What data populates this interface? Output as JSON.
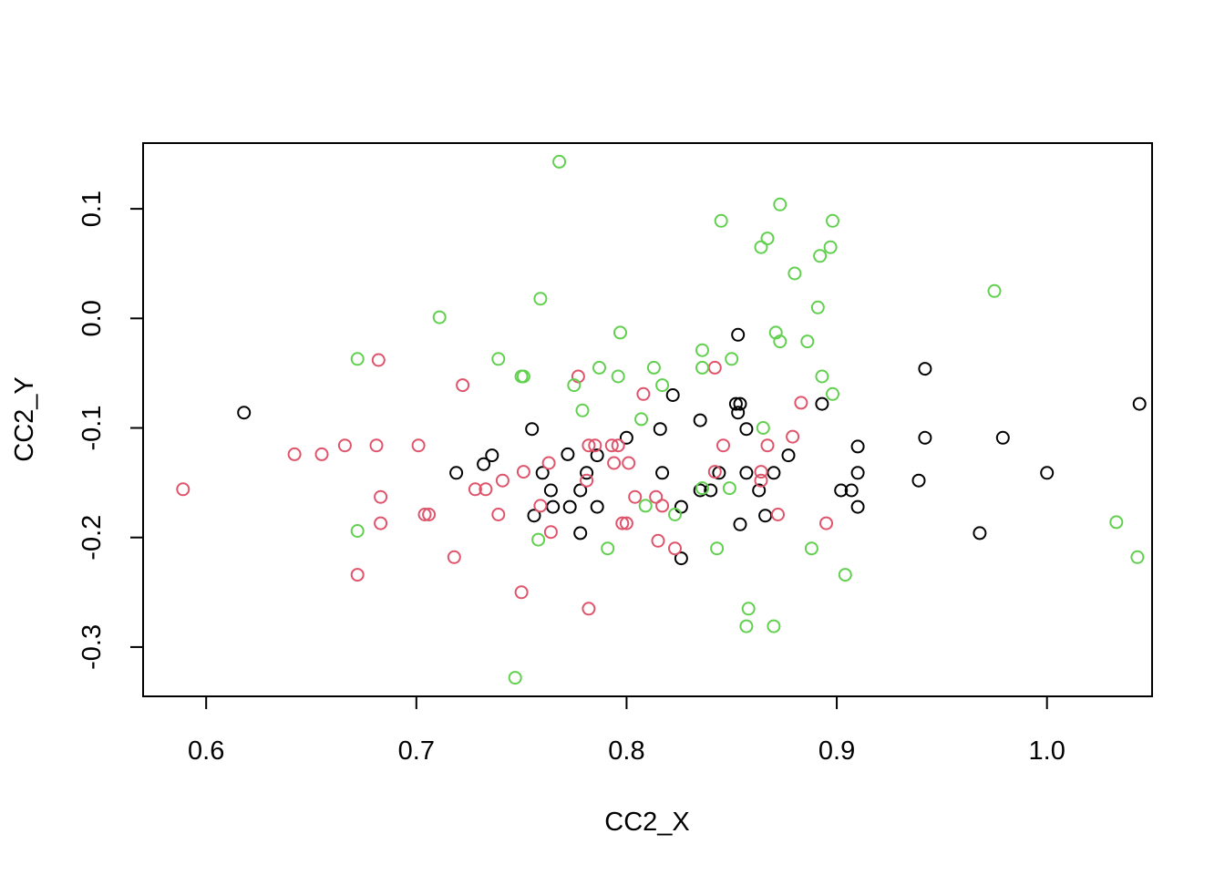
{
  "chart_data": {
    "type": "scatter",
    "title": "",
    "xlabel": "CC2_X",
    "ylabel": "CC2_Y",
    "xlim": [
      0.57,
      1.05
    ],
    "ylim": [
      -0.345,
      0.16
    ],
    "xticks": [
      0.6,
      0.7,
      0.8,
      0.9,
      1.0
    ],
    "xtick_labels": [
      "0.6",
      "0.7",
      "0.8",
      "0.9",
      "1.0"
    ],
    "yticks": [
      -0.3,
      -0.2,
      -0.1,
      0.0,
      0.1
    ],
    "ytick_labels": [
      "-0.3",
      "-0.2",
      "-0.1",
      "0.0",
      "0.1"
    ],
    "grid": false,
    "marker": "open-circle",
    "series": [
      {
        "color": "#000000",
        "points": [
          [
            0.618,
            -0.086
          ],
          [
            0.719,
            -0.141
          ],
          [
            0.732,
            -0.133
          ],
          [
            0.736,
            -0.125
          ],
          [
            0.755,
            -0.101
          ],
          [
            0.756,
            -0.18
          ],
          [
            0.76,
            -0.141
          ],
          [
            0.764,
            -0.157
          ],
          [
            0.765,
            -0.172
          ],
          [
            0.772,
            -0.124
          ],
          [
            0.773,
            -0.172
          ],
          [
            0.778,
            -0.196
          ],
          [
            0.778,
            -0.157
          ],
          [
            0.781,
            -0.141
          ],
          [
            0.786,
            -0.125
          ],
          [
            0.786,
            -0.172
          ],
          [
            0.8,
            -0.109
          ],
          [
            0.816,
            -0.101
          ],
          [
            0.817,
            -0.141
          ],
          [
            0.822,
            -0.07
          ],
          [
            0.826,
            -0.172
          ],
          [
            0.826,
            -0.219
          ],
          [
            0.835,
            -0.093
          ],
          [
            0.835,
            -0.157
          ],
          [
            0.84,
            -0.157
          ],
          [
            0.844,
            -0.141
          ],
          [
            0.852,
            -0.078
          ],
          [
            0.853,
            -0.086
          ],
          [
            0.853,
            -0.015
          ],
          [
            0.854,
            -0.078
          ],
          [
            0.854,
            -0.188
          ],
          [
            0.857,
            -0.141
          ],
          [
            0.857,
            -0.101
          ],
          [
            0.863,
            -0.157
          ],
          [
            0.866,
            -0.18
          ],
          [
            0.87,
            -0.141
          ],
          [
            0.877,
            -0.125
          ],
          [
            0.893,
            -0.078
          ],
          [
            0.902,
            -0.157
          ],
          [
            0.907,
            -0.157
          ],
          [
            0.91,
            -0.117
          ],
          [
            0.91,
            -0.141
          ],
          [
            0.91,
            -0.172
          ],
          [
            0.939,
            -0.148
          ],
          [
            0.942,
            -0.046
          ],
          [
            0.942,
            -0.109
          ],
          [
            0.968,
            -0.196
          ],
          [
            0.979,
            -0.109
          ],
          [
            1.0,
            -0.141
          ],
          [
            1.044,
            -0.078
          ]
        ]
      },
      {
        "color": "#DF536B",
        "points": [
          [
            0.589,
            -0.156
          ],
          [
            0.642,
            -0.124
          ],
          [
            0.655,
            -0.124
          ],
          [
            0.666,
            -0.116
          ],
          [
            0.672,
            -0.234
          ],
          [
            0.681,
            -0.116
          ],
          [
            0.682,
            -0.038
          ],
          [
            0.683,
            -0.163
          ],
          [
            0.683,
            -0.187
          ],
          [
            0.701,
            -0.116
          ],
          [
            0.704,
            -0.179
          ],
          [
            0.706,
            -0.179
          ],
          [
            0.718,
            -0.218
          ],
          [
            0.722,
            -0.061
          ],
          [
            0.728,
            -0.156
          ],
          [
            0.733,
            -0.156
          ],
          [
            0.739,
            -0.179
          ],
          [
            0.741,
            -0.148
          ],
          [
            0.75,
            -0.25
          ],
          [
            0.751,
            -0.14
          ],
          [
            0.759,
            -0.171
          ],
          [
            0.763,
            -0.132
          ],
          [
            0.764,
            -0.195
          ],
          [
            0.777,
            -0.053
          ],
          [
            0.781,
            -0.148
          ],
          [
            0.782,
            -0.265
          ],
          [
            0.782,
            -0.116
          ],
          [
            0.785,
            -0.116
          ],
          [
            0.793,
            -0.116
          ],
          [
            0.794,
            -0.132
          ],
          [
            0.796,
            -0.116
          ],
          [
            0.798,
            -0.187
          ],
          [
            0.8,
            -0.187
          ],
          [
            0.801,
            -0.132
          ],
          [
            0.804,
            -0.163
          ],
          [
            0.808,
            -0.069
          ],
          [
            0.814,
            -0.163
          ],
          [
            0.815,
            -0.203
          ],
          [
            0.817,
            -0.171
          ],
          [
            0.823,
            -0.21
          ],
          [
            0.842,
            -0.045
          ],
          [
            0.842,
            -0.14
          ],
          [
            0.846,
            -0.116
          ],
          [
            0.864,
            -0.14
          ],
          [
            0.864,
            -0.148
          ],
          [
            0.867,
            -0.116
          ],
          [
            0.872,
            -0.179
          ],
          [
            0.879,
            -0.108
          ],
          [
            0.883,
            -0.077
          ],
          [
            0.895,
            -0.187
          ]
        ]
      },
      {
        "color": "#61D04F",
        "points": [
          [
            0.672,
            -0.037
          ],
          [
            0.672,
            -0.194
          ],
          [
            0.711,
            0.001
          ],
          [
            0.739,
            -0.037
          ],
          [
            0.75,
            -0.053
          ],
          [
            0.751,
            -0.053
          ],
          [
            0.747,
            -0.328
          ],
          [
            0.758,
            -0.202
          ],
          [
            0.759,
            0.018
          ],
          [
            0.768,
            0.143
          ],
          [
            0.775,
            -0.061
          ],
          [
            0.779,
            -0.084
          ],
          [
            0.787,
            -0.045
          ],
          [
            0.791,
            -0.21
          ],
          [
            0.796,
            -0.053
          ],
          [
            0.797,
            -0.013
          ],
          [
            0.807,
            -0.092
          ],
          [
            0.809,
            -0.171
          ],
          [
            0.813,
            -0.045
          ],
          [
            0.817,
            -0.061
          ],
          [
            0.823,
            -0.179
          ],
          [
            0.836,
            -0.029
          ],
          [
            0.836,
            -0.045
          ],
          [
            0.836,
            -0.155
          ],
          [
            0.843,
            -0.21
          ],
          [
            0.845,
            0.089
          ],
          [
            0.849,
            -0.155
          ],
          [
            0.85,
            -0.037
          ],
          [
            0.858,
            -0.265
          ],
          [
            0.857,
            -0.281
          ],
          [
            0.864,
            0.065
          ],
          [
            0.865,
            -0.1
          ],
          [
            0.867,
            0.073
          ],
          [
            0.87,
            -0.281
          ],
          [
            0.871,
            -0.013
          ],
          [
            0.873,
            -0.021
          ],
          [
            0.873,
            0.104
          ],
          [
            0.88,
            0.041
          ],
          [
            0.886,
            -0.021
          ],
          [
            0.888,
            -0.21
          ],
          [
            0.891,
            0.01
          ],
          [
            0.892,
            0.057
          ],
          [
            0.893,
            -0.053
          ],
          [
            0.897,
            0.065
          ],
          [
            0.898,
            0.089
          ],
          [
            0.898,
            -0.069
          ],
          [
            0.904,
            -0.234
          ],
          [
            0.975,
            0.025
          ],
          [
            1.033,
            -0.186
          ],
          [
            1.043,
            -0.218
          ]
        ]
      }
    ]
  }
}
